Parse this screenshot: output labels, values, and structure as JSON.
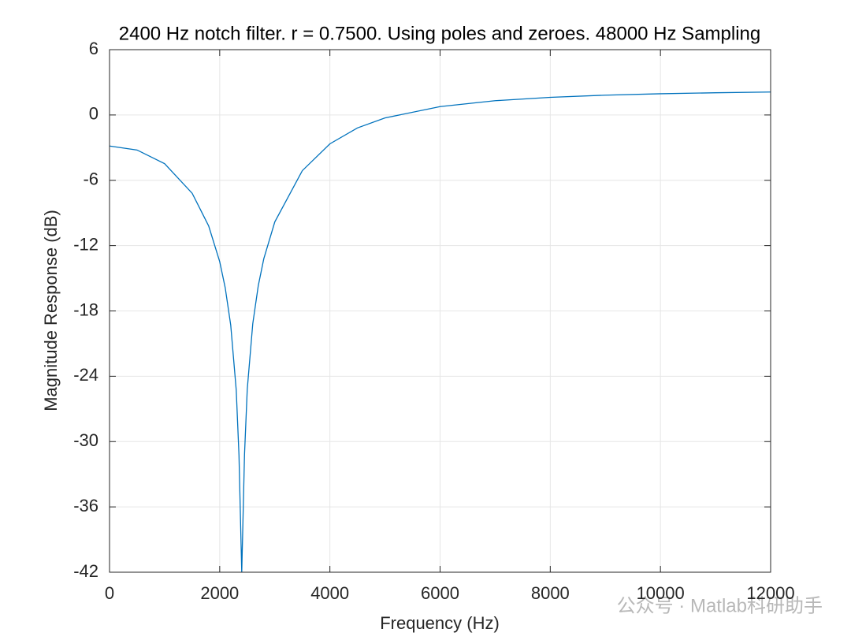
{
  "chart_data": {
    "type": "line",
    "title": "2400 Hz notch filter. r = 0.7500. Using poles and zeroes. 48000 Hz Sampling",
    "x_label": "Frequency (Hz)",
    "y_label": "Magnitude Response (dB)",
    "x": [
      0,
      500,
      1000,
      1500,
      1800,
      2000,
      2100,
      2200,
      2300,
      2350,
      2400,
      2450,
      2500,
      2600,
      2700,
      2800,
      3000,
      3500,
      4000,
      4500,
      5000,
      6000,
      7000,
      8000,
      9000,
      10000,
      11000,
      12000
    ],
    "series": [
      {
        "color": "#0072bd",
        "values": [
          -2.85,
          -3.22,
          -4.47,
          -7.19,
          -10.2,
          -13.47,
          -15.87,
          -19.31,
          -25.28,
          -31.27,
          -42,
          -31.22,
          -25.2,
          -19.18,
          -15.68,
          -13.21,
          -9.82,
          -5.11,
          -2.65,
          -1.19,
          -0.27,
          0.77,
          1.31,
          1.62,
          1.82,
          1.95,
          2.04,
          2.11
        ]
      }
    ],
    "xlim": [
      0,
      12000
    ],
    "xticks": [
      0,
      2000,
      4000,
      6000,
      8000,
      10000,
      12000
    ],
    "ylim": [
      -42,
      6
    ],
    "yticks": [
      -42,
      -36,
      -30,
      -24,
      -18,
      -12,
      -6,
      0,
      6
    ],
    "grid": true,
    "watermark": "公众号 · Matlab科研助手"
  }
}
